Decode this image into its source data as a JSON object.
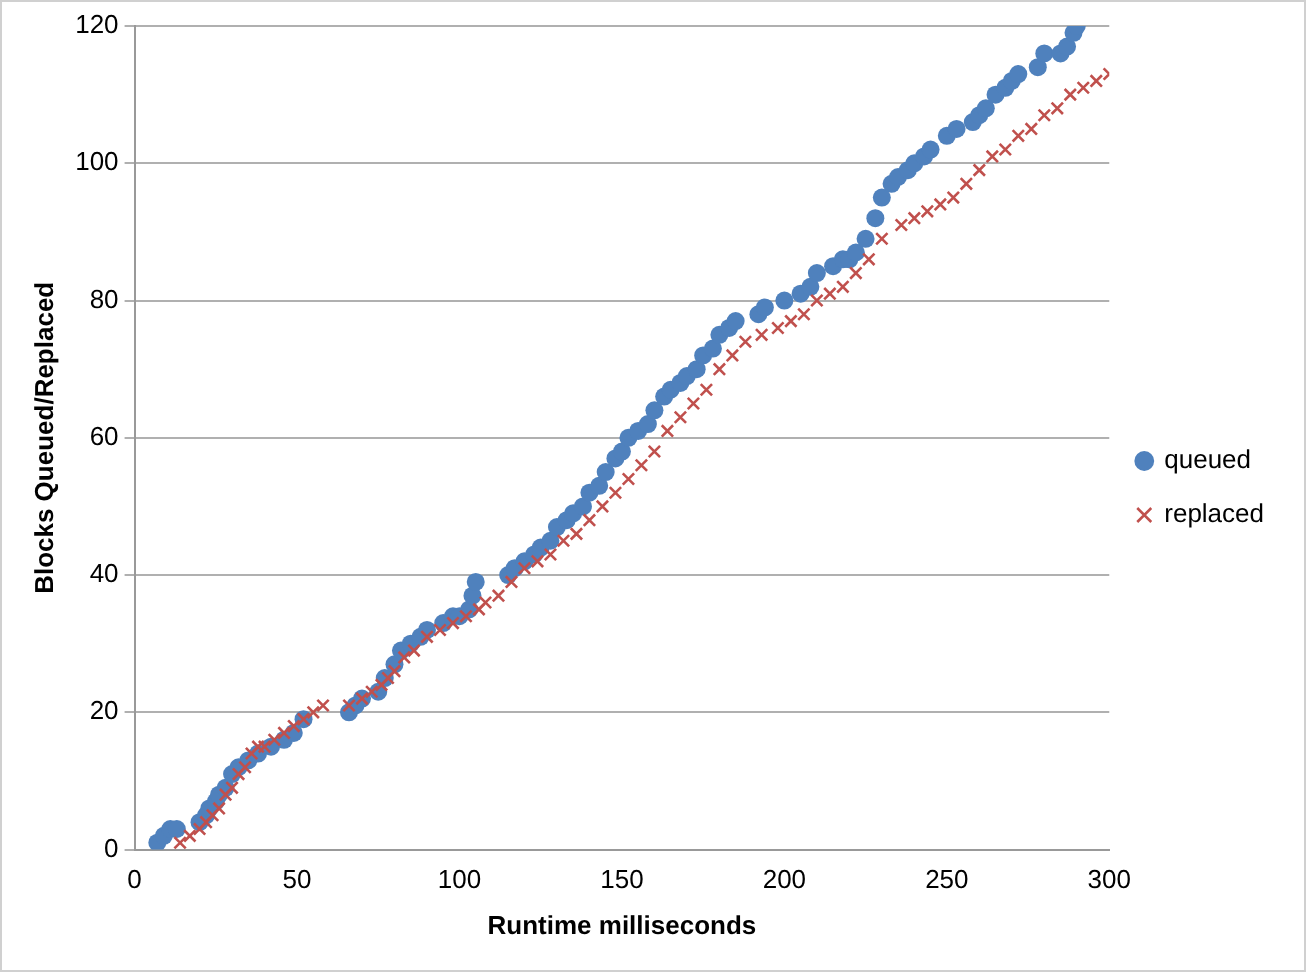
{
  "chart_data": {
    "type": "scatter",
    "xlabel": "Runtime milliseconds",
    "ylabel": "Blocks Queued/Replaced",
    "xlim": [
      0,
      300
    ],
    "xticks": [
      0,
      50,
      100,
      150,
      200,
      250,
      300
    ],
    "ylim": [
      0,
      120
    ],
    "yticks": [
      0,
      20,
      40,
      60,
      80,
      100,
      120
    ],
    "grid": "y",
    "legend": "right",
    "series": [
      {
        "name": "queued",
        "color": "#4f81bd",
        "marker": "circle",
        "x": [
          7,
          9,
          11,
          13,
          20,
          22,
          23,
          25,
          26,
          28,
          30,
          32,
          35,
          38,
          42,
          46,
          49,
          52,
          66,
          68,
          70,
          75,
          77,
          80,
          82,
          85,
          88,
          90,
          95,
          98,
          100,
          103,
          104,
          105,
          115,
          117,
          120,
          123,
          125,
          128,
          130,
          133,
          135,
          138,
          140,
          143,
          145,
          148,
          150,
          152,
          155,
          158,
          160,
          163,
          165,
          168,
          170,
          173,
          175,
          178,
          180,
          183,
          185,
          192,
          194,
          200,
          205,
          208,
          210,
          215,
          218,
          220,
          222,
          225,
          228,
          230,
          233,
          235,
          238,
          240,
          243,
          245,
          250,
          253,
          258,
          260,
          262,
          265,
          268,
          270,
          272,
          278,
          280,
          285,
          287,
          289,
          290
        ],
        "values": [
          1,
          2,
          3,
          3,
          4,
          5,
          6,
          7,
          8,
          9,
          11,
          12,
          13,
          14,
          15,
          16,
          17,
          19,
          20,
          21,
          22,
          23,
          25,
          27,
          29,
          30,
          31,
          32,
          33,
          34,
          34,
          35,
          37,
          39,
          40,
          41,
          42,
          43,
          44,
          45,
          47,
          48,
          49,
          50,
          52,
          53,
          55,
          57,
          58,
          60,
          61,
          62,
          64,
          66,
          67,
          68,
          69,
          70,
          72,
          73,
          75,
          76,
          77,
          78,
          79,
          80,
          81,
          82,
          84,
          85,
          86,
          86,
          87,
          89,
          92,
          95,
          97,
          98,
          99,
          100,
          101,
          102,
          104,
          105,
          106,
          107,
          108,
          110,
          111,
          112,
          113,
          114,
          116,
          116,
          117,
          119,
          120
        ]
      },
      {
        "name": "replaced",
        "color": "#c0504d",
        "marker": "cross",
        "x": [
          14,
          17,
          20,
          22,
          24,
          26,
          28,
          30,
          32,
          34,
          36,
          38,
          40,
          43,
          46,
          49,
          52,
          55,
          58,
          66,
          70,
          73,
          76,
          78,
          80,
          83,
          86,
          90,
          94,
          98,
          102,
          106,
          108,
          112,
          116,
          120,
          124,
          128,
          132,
          136,
          140,
          144,
          148,
          152,
          156,
          160,
          164,
          168,
          172,
          176,
          180,
          184,
          188,
          193,
          198,
          202,
          206,
          210,
          214,
          218,
          222,
          226,
          230,
          236,
          240,
          244,
          248,
          252,
          256,
          260,
          264,
          268,
          272,
          276,
          280,
          284,
          288,
          292,
          296,
          300
        ],
        "values": [
          1,
          2,
          3,
          4,
          5,
          6,
          8,
          9,
          11,
          12,
          14,
          15,
          15,
          16,
          17,
          18,
          19,
          20,
          21,
          21,
          22,
          23,
          24,
          25,
          26,
          28,
          29,
          31,
          32,
          33,
          34,
          35,
          36,
          37,
          39,
          41,
          42,
          43,
          45,
          46,
          48,
          50,
          52,
          54,
          56,
          58,
          61,
          63,
          65,
          67,
          70,
          72,
          74,
          75,
          76,
          77,
          78,
          80,
          81,
          82,
          84,
          86,
          89,
          91,
          92,
          93,
          94,
          95,
          97,
          99,
          101,
          102,
          104,
          105,
          107,
          108,
          110,
          111,
          112,
          113
        ]
      }
    ]
  }
}
